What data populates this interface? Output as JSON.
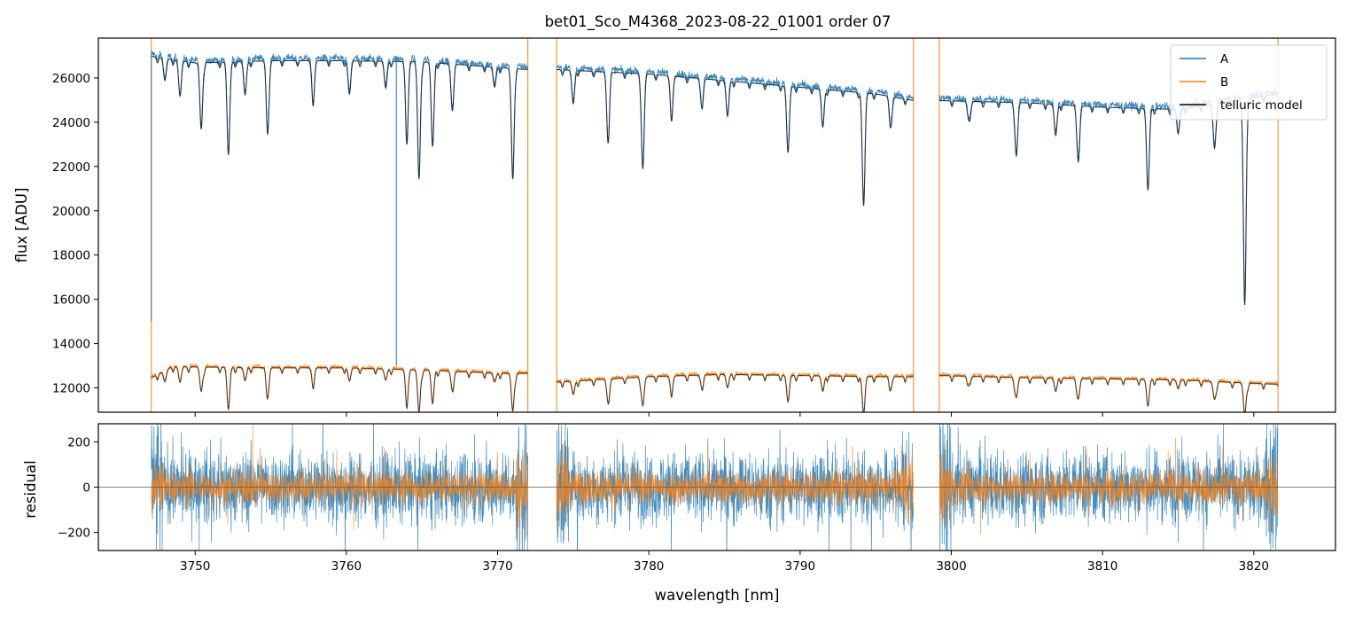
{
  "chart_data": [
    {
      "type": "line",
      "title": "bet01_Sco_M4368_2023-08-22_01001  order 07",
      "xlabel": "",
      "ylabel": "flux [ADU]",
      "xlim": [
        3743.6,
        3825.4
      ],
      "ylim": [
        10900,
        27800
      ],
      "x_ticks": [
        3750,
        3760,
        3770,
        3780,
        3790,
        3800,
        3810,
        3820
      ],
      "y_ticks": [
        12000,
        14000,
        16000,
        18000,
        20000,
        22000,
        24000,
        26000
      ],
      "y_tick_labels": [
        "12000",
        "14000",
        "16000",
        "18000",
        "20000",
        "22000",
        "24000",
        "26000"
      ],
      "grid": false,
      "legend_position": "top-right",
      "segments": [
        {
          "x_start": 3747.1,
          "x_end": 3772.0
        },
        {
          "x_start": 3773.9,
          "x_end": 3797.5
        },
        {
          "x_start": 3799.2,
          "x_end": 3821.6
        }
      ],
      "series": [
        {
          "name": "A",
          "color": "#1f77b4",
          "continuum_points": [
            [
              3747.1,
              27100
            ],
            [
              3750,
              26800
            ],
            [
              3755,
              26900
            ],
            [
              3760,
              26900
            ],
            [
              3765,
              26850
            ],
            [
              3770,
              26600
            ],
            [
              3772.0,
              26500
            ],
            [
              3773.9,
              26500
            ],
            [
              3780,
              26300
            ],
            [
              3785,
              26000
            ],
            [
              3790,
              25700
            ],
            [
              3795,
              25400
            ],
            [
              3797.5,
              25100
            ],
            [
              3799.2,
              25100
            ],
            [
              3805,
              25000
            ],
            [
              3810,
              24800
            ],
            [
              3815,
              24700
            ],
            [
              3821.6,
              25400
            ]
          ],
          "absorption_lines": [
            [
              3748.0,
              1000
            ],
            [
              3749.0,
              1600
            ],
            [
              3750.4,
              3000
            ],
            [
              3752.2,
              4200
            ],
            [
              3753.3,
              1500
            ],
            [
              3754.8,
              3200
            ],
            [
              3757.8,
              1800
            ],
            [
              3760.2,
              1500
            ],
            [
              3762.6,
              1200
            ],
            [
              3764.0,
              3500
            ],
            [
              3764.8,
              5300
            ],
            [
              3765.7,
              3800
            ],
            [
              3767.0,
              2000
            ],
            [
              3769.8,
              900
            ],
            [
              3771.0,
              5000
            ],
            [
              3775.0,
              1500
            ],
            [
              3777.3,
              3100
            ],
            [
              3779.6,
              4300
            ],
            [
              3781.5,
              1800
            ],
            [
              3783.5,
              1200
            ],
            [
              3785.2,
              1600
            ],
            [
              3789.2,
              3000
            ],
            [
              3791.5,
              1700
            ],
            [
              3794.2,
              5100
            ],
            [
              3796.0,
              1300
            ],
            [
              3801.2,
              900
            ],
            [
              3804.3,
              2400
            ],
            [
              3806.9,
              1400
            ],
            [
              3808.4,
              2500
            ],
            [
              3813.0,
              3700
            ],
            [
              3815.0,
              1100
            ],
            [
              3817.4,
              2000
            ],
            [
              3819.4,
              9300
            ]
          ],
          "spikes": [
            [
              3747.1,
              15000
            ],
            [
              3763.3,
              13000
            ]
          ]
        },
        {
          "name": "B",
          "color": "#ff7f0e",
          "continuum_points": [
            [
              3747.1,
              12500
            ],
            [
              3748.5,
              13000
            ],
            [
              3755,
              12950
            ],
            [
              3760,
              12950
            ],
            [
              3765,
              12850
            ],
            [
              3770,
              12700
            ],
            [
              3772.0,
              12700
            ],
            [
              3773.9,
              12300
            ],
            [
              3780,
              12550
            ],
            [
              3785,
              12650
            ],
            [
              3790,
              12600
            ],
            [
              3795,
              12550
            ],
            [
              3797.5,
              12550
            ],
            [
              3799.2,
              12600
            ],
            [
              3805,
              12500
            ],
            [
              3810,
              12450
            ],
            [
              3815,
              12400
            ],
            [
              3821.6,
              12200
            ]
          ],
          "absorption_lines": [
            [
              3748.0,
              500
            ],
            [
              3749.0,
              700
            ],
            [
              3750.4,
              1100
            ],
            [
              3752.2,
              1900
            ],
            [
              3753.3,
              600
            ],
            [
              3754.8,
              1300
            ],
            [
              3757.8,
              700
            ],
            [
              3760.2,
              600
            ],
            [
              3762.6,
              500
            ],
            [
              3764.0,
              1500
            ],
            [
              3764.8,
              1900
            ],
            [
              3765.7,
              1500
            ],
            [
              3767.0,
              800
            ],
            [
              3769.8,
              400
            ],
            [
              3771.0,
              1700
            ],
            [
              3775.0,
              600
            ],
            [
              3777.3,
              1000
            ],
            [
              3779.6,
              1300
            ],
            [
              3781.5,
              700
            ],
            [
              3783.5,
              500
            ],
            [
              3785.2,
              600
            ],
            [
              3789.2,
              1200
            ],
            [
              3791.5,
              700
            ],
            [
              3794.2,
              1700
            ],
            [
              3796.0,
              500
            ],
            [
              3801.2,
              400
            ],
            [
              3804.3,
              900
            ],
            [
              3806.9,
              600
            ],
            [
              3808.4,
              900
            ],
            [
              3813.0,
              1200
            ],
            [
              3815.0,
              400
            ],
            [
              3817.4,
              800
            ],
            [
              3819.4,
              1400
            ]
          ],
          "spikes": []
        },
        {
          "name": "telluric model",
          "color": "#000000",
          "description_of_role": ""
        }
      ]
    },
    {
      "type": "line",
      "title": "",
      "xlabel": "wavelength [nm]",
      "ylabel": "residual",
      "xlim": [
        3743.6,
        3825.4
      ],
      "ylim": [
        -280,
        280
      ],
      "x_ticks": [
        3750,
        3760,
        3770,
        3780,
        3790,
        3800,
        3810,
        3820
      ],
      "x_tick_labels": [
        "3750",
        "3760",
        "3770",
        "3780",
        "3790",
        "3800",
        "3810",
        "3820"
      ],
      "y_ticks": [
        -200,
        0,
        200
      ],
      "y_tick_labels": [
        "−200",
        "0",
        "200"
      ],
      "zero_line": 0,
      "series": [
        {
          "name": "A",
          "color": "#1f77b4",
          "noise_amplitude": 110
        },
        {
          "name": "B",
          "color": "#ff7f0e",
          "noise_amplitude": 55
        }
      ]
    }
  ],
  "legend": {
    "items": [
      {
        "label": "A",
        "color": "#1f77b4"
      },
      {
        "label": "B",
        "color": "#ff7f0e"
      },
      {
        "label": "telluric model",
        "color": "#000000"
      }
    ]
  }
}
